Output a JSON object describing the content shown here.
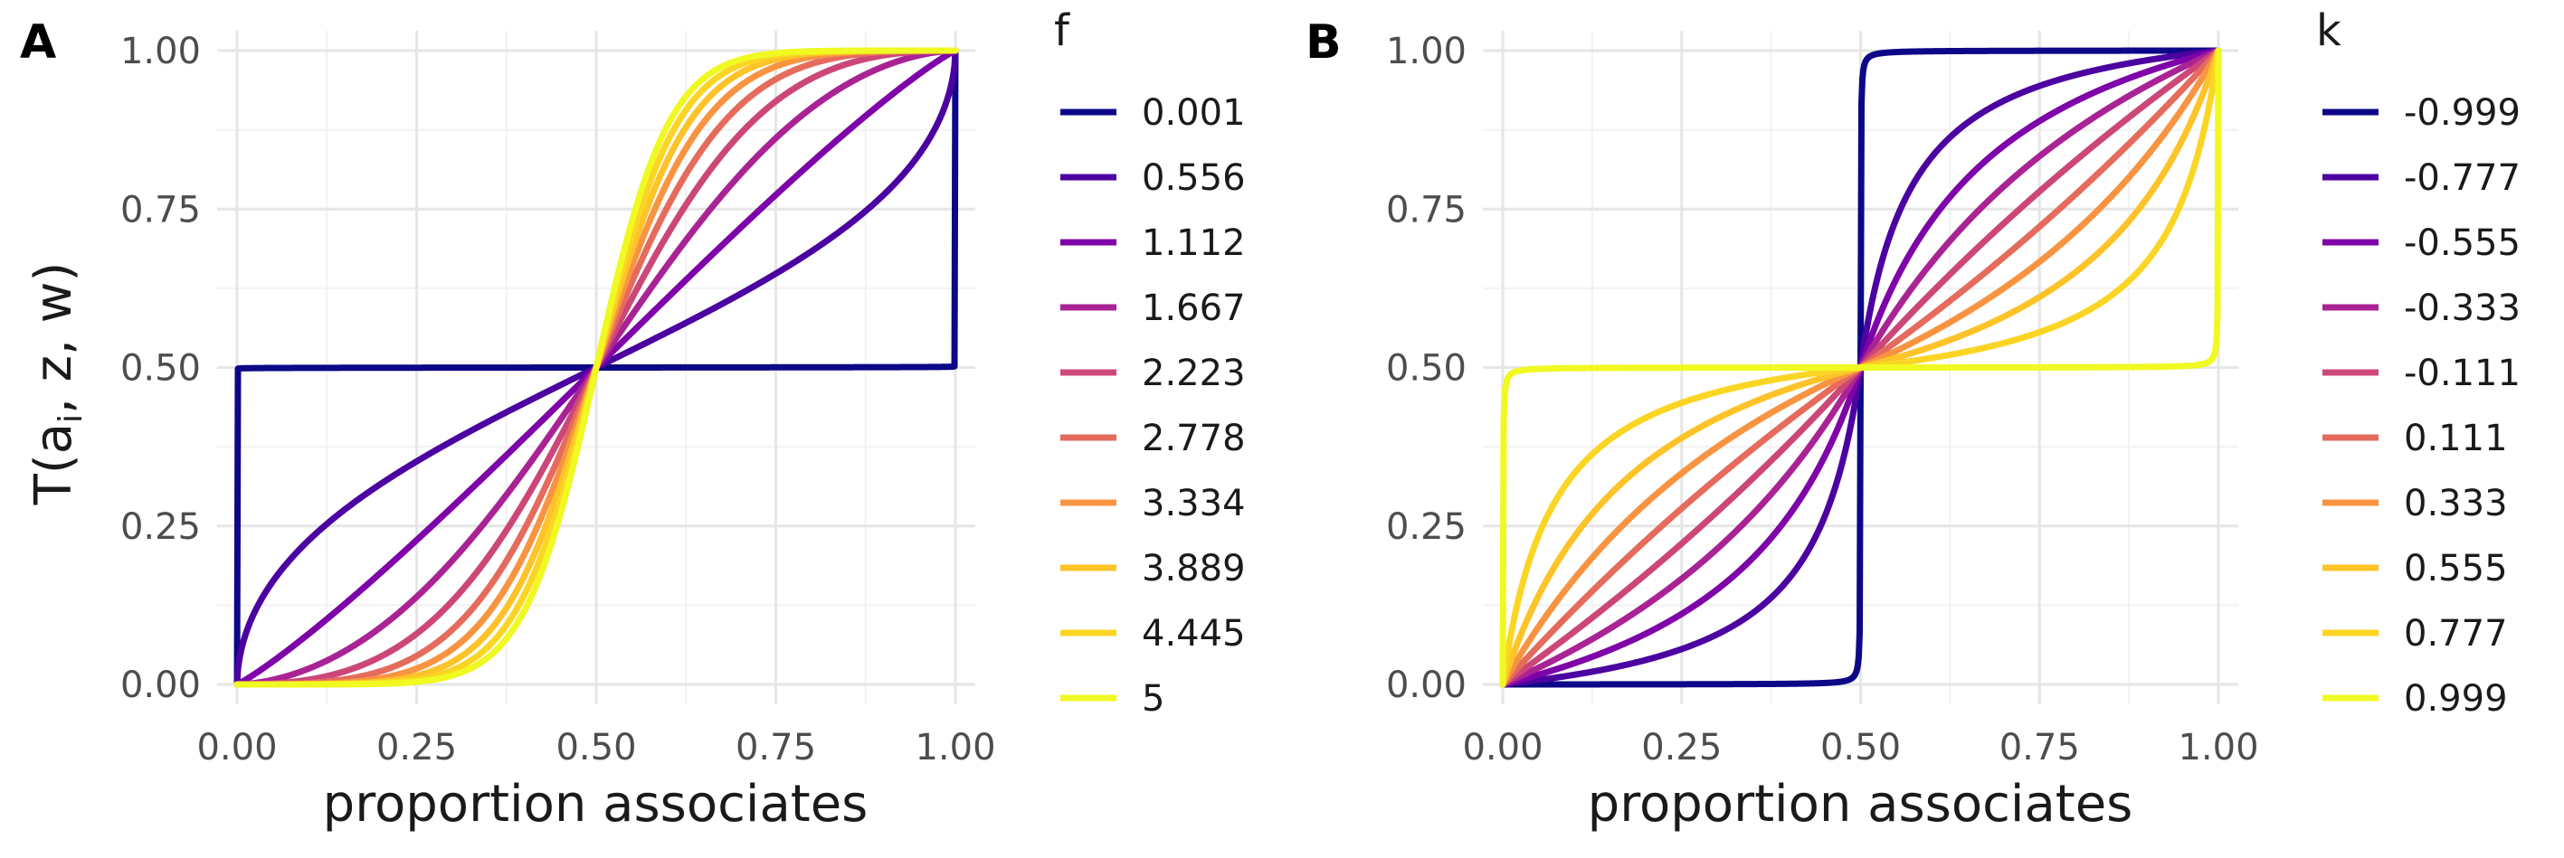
{
  "chart_data": [
    {
      "type": "line",
      "panel_tag": "A",
      "xlabel": "proportion associates",
      "ylabel_main": "T(a",
      "ylabel_sub": "i",
      "ylabel_end": ", z, w)",
      "xlim": [
        0,
        1
      ],
      "ylim": [
        0,
        1
      ],
      "x_ticks": [
        "0.00",
        "0.25",
        "0.50",
        "0.75",
        "1.00"
      ],
      "y_ticks": [
        "0.00",
        "0.25",
        "0.50",
        "0.75",
        "1.00"
      ],
      "grid": true,
      "legend_title": "f",
      "legend_position": "right",
      "series": [
        {
          "name": "0.001",
          "color": "#0d0887",
          "f": 0.001
        },
        {
          "name": "0.556",
          "color": "#4c02a1",
          "f": 0.556
        },
        {
          "name": "1.112",
          "color": "#7e03a8",
          "f": 1.112
        },
        {
          "name": "1.667",
          "color": "#a92395",
          "f": 1.667
        },
        {
          "name": "2.223",
          "color": "#cc4778",
          "f": 2.223
        },
        {
          "name": "2.778",
          "color": "#e56b5d",
          "f": 2.778
        },
        {
          "name": "3.334",
          "color": "#f89441",
          "f": 3.334
        },
        {
          "name": "3.889",
          "color": "#fdc328",
          "f": 3.889
        },
        {
          "name": "4.445",
          "color": "#fbd524",
          "f": 4.445
        },
        {
          "name": "5",
          "color": "#f0f921",
          "f": 5
        }
      ]
    },
    {
      "type": "line",
      "panel_tag": "B",
      "xlabel": "proportion associates",
      "xlim": [
        0,
        1
      ],
      "ylim": [
        0,
        1
      ],
      "x_ticks": [
        "0.00",
        "0.25",
        "0.50",
        "0.75",
        "1.00"
      ],
      "y_ticks": [
        "0.00",
        "0.25",
        "0.50",
        "0.75",
        "1.00"
      ],
      "grid": true,
      "legend_title": "k",
      "legend_position": "right",
      "series": [
        {
          "name": "-0.999",
          "color": "#0d0887",
          "k": -0.999
        },
        {
          "name": "-0.777",
          "color": "#4c02a1",
          "k": -0.777
        },
        {
          "name": "-0.555",
          "color": "#7e03a8",
          "k": -0.555
        },
        {
          "name": "-0.333",
          "color": "#a92395",
          "k": -0.333
        },
        {
          "name": "-0.111",
          "color": "#cc4778",
          "k": -0.111
        },
        {
          "name": "0.111",
          "color": "#e56b5d",
          "k": 0.111
        },
        {
          "name": "0.333",
          "color": "#f89441",
          "k": 0.333
        },
        {
          "name": "0.555",
          "color": "#fdc328",
          "k": 0.555
        },
        {
          "name": "0.777",
          "color": "#fbd524",
          "k": 0.777
        },
        {
          "name": "0.999",
          "color": "#f0f921",
          "k": 0.999
        }
      ]
    }
  ]
}
